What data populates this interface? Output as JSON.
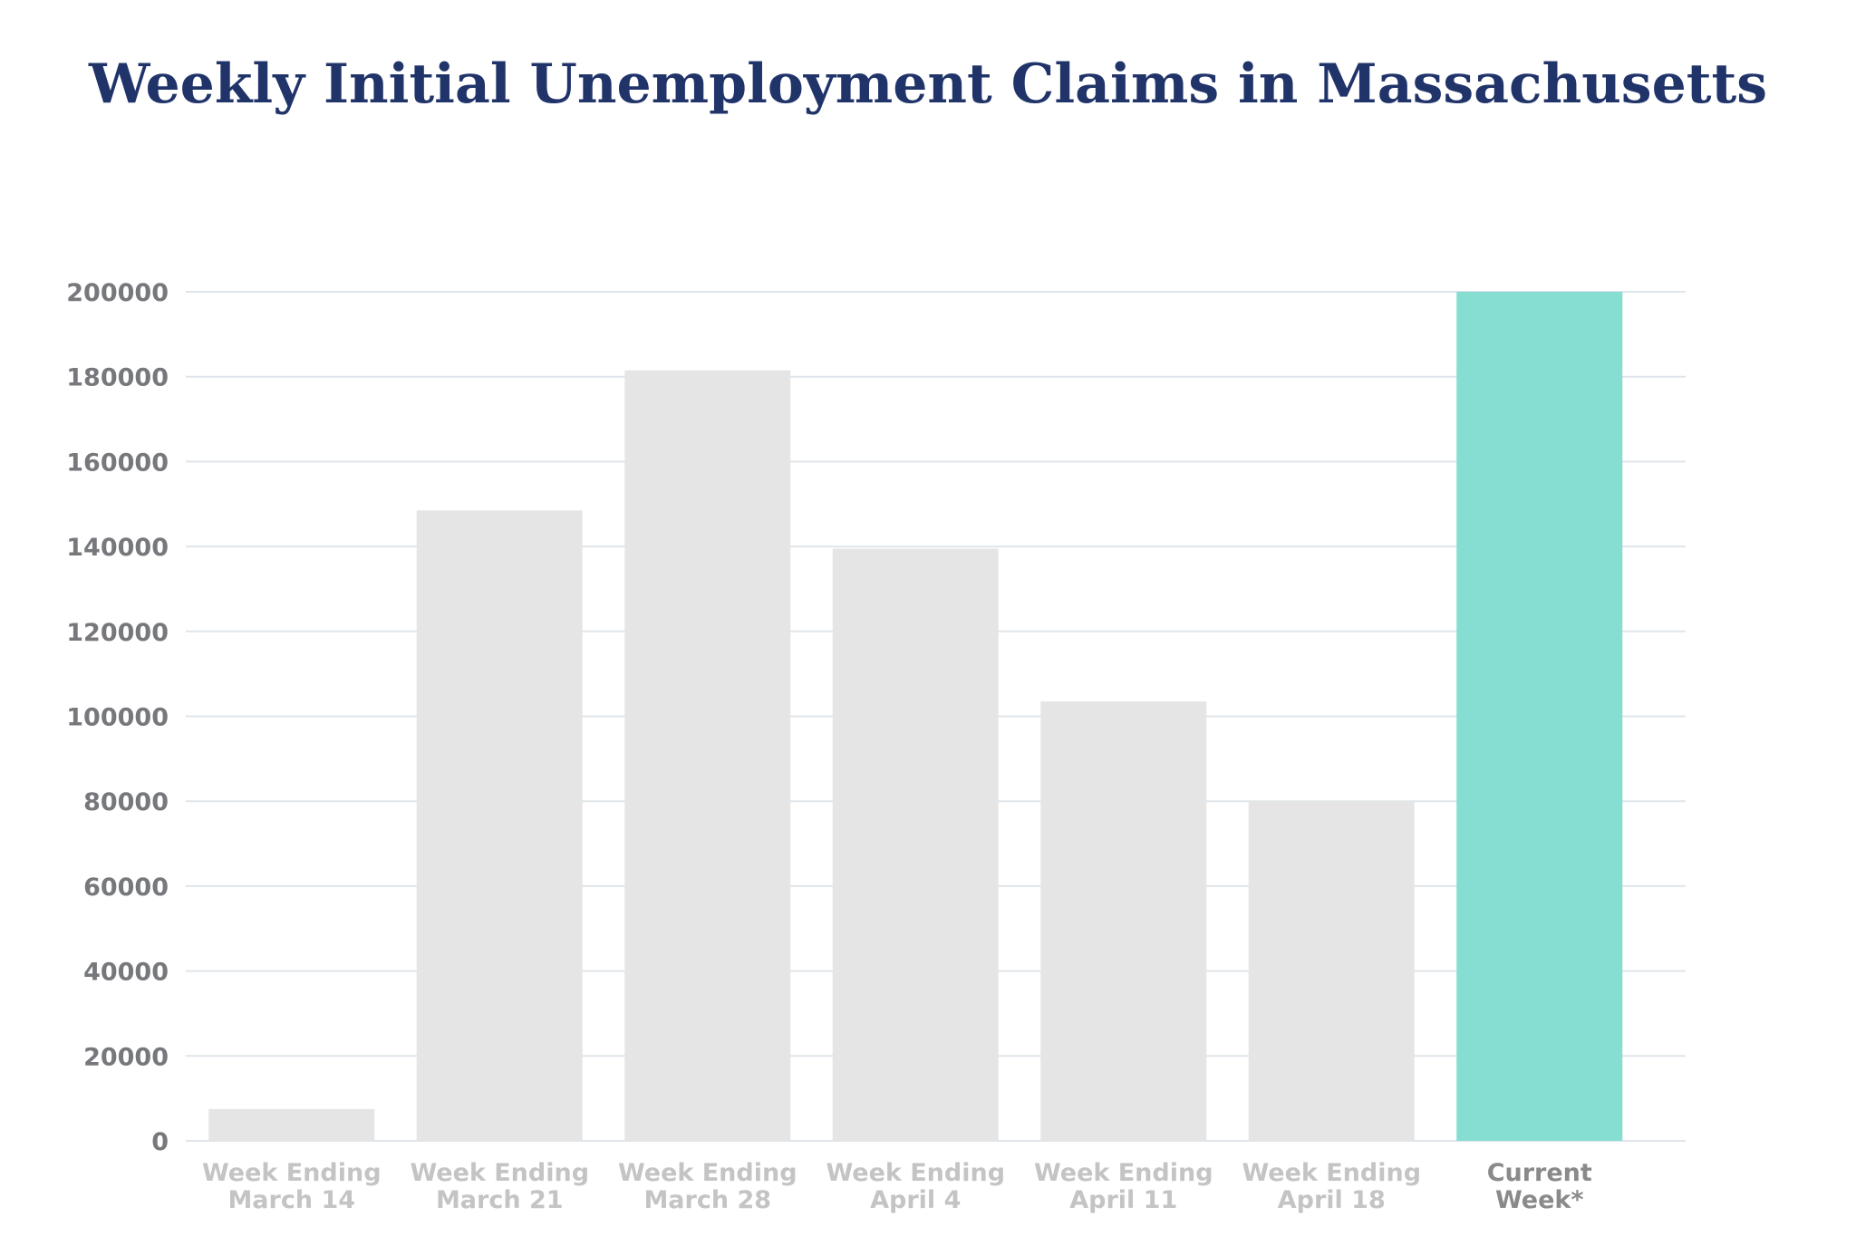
{
  "chart_data": {
    "type": "bar",
    "title": "Weekly Initial Unemployment Claims in Massachusetts",
    "categories": [
      [
        "Week Ending",
        "March 14"
      ],
      [
        "Week Ending",
        "March 21"
      ],
      [
        "Week Ending",
        "March 28"
      ],
      [
        "Week Ending",
        "April 4"
      ],
      [
        "Week Ending",
        "April 11"
      ],
      [
        "Week Ending",
        "April 18"
      ],
      [
        "Current",
        "Week*"
      ]
    ],
    "values": [
      7500,
      148500,
      181500,
      139500,
      103500,
      80000,
      200000
    ],
    "highlight_index": 6,
    "ylim": [
      0,
      200000
    ],
    "yticks": [
      0,
      20000,
      40000,
      60000,
      80000,
      100000,
      120000,
      140000,
      160000,
      180000,
      200000
    ],
    "grid": true,
    "legend": "none",
    "xlabel": "",
    "ylabel": "",
    "colors": {
      "bar": "#e5e5e5",
      "highlight_bar": "#86ddd2",
      "grid": "#dfe5ea",
      "title": "#21346a"
    }
  }
}
